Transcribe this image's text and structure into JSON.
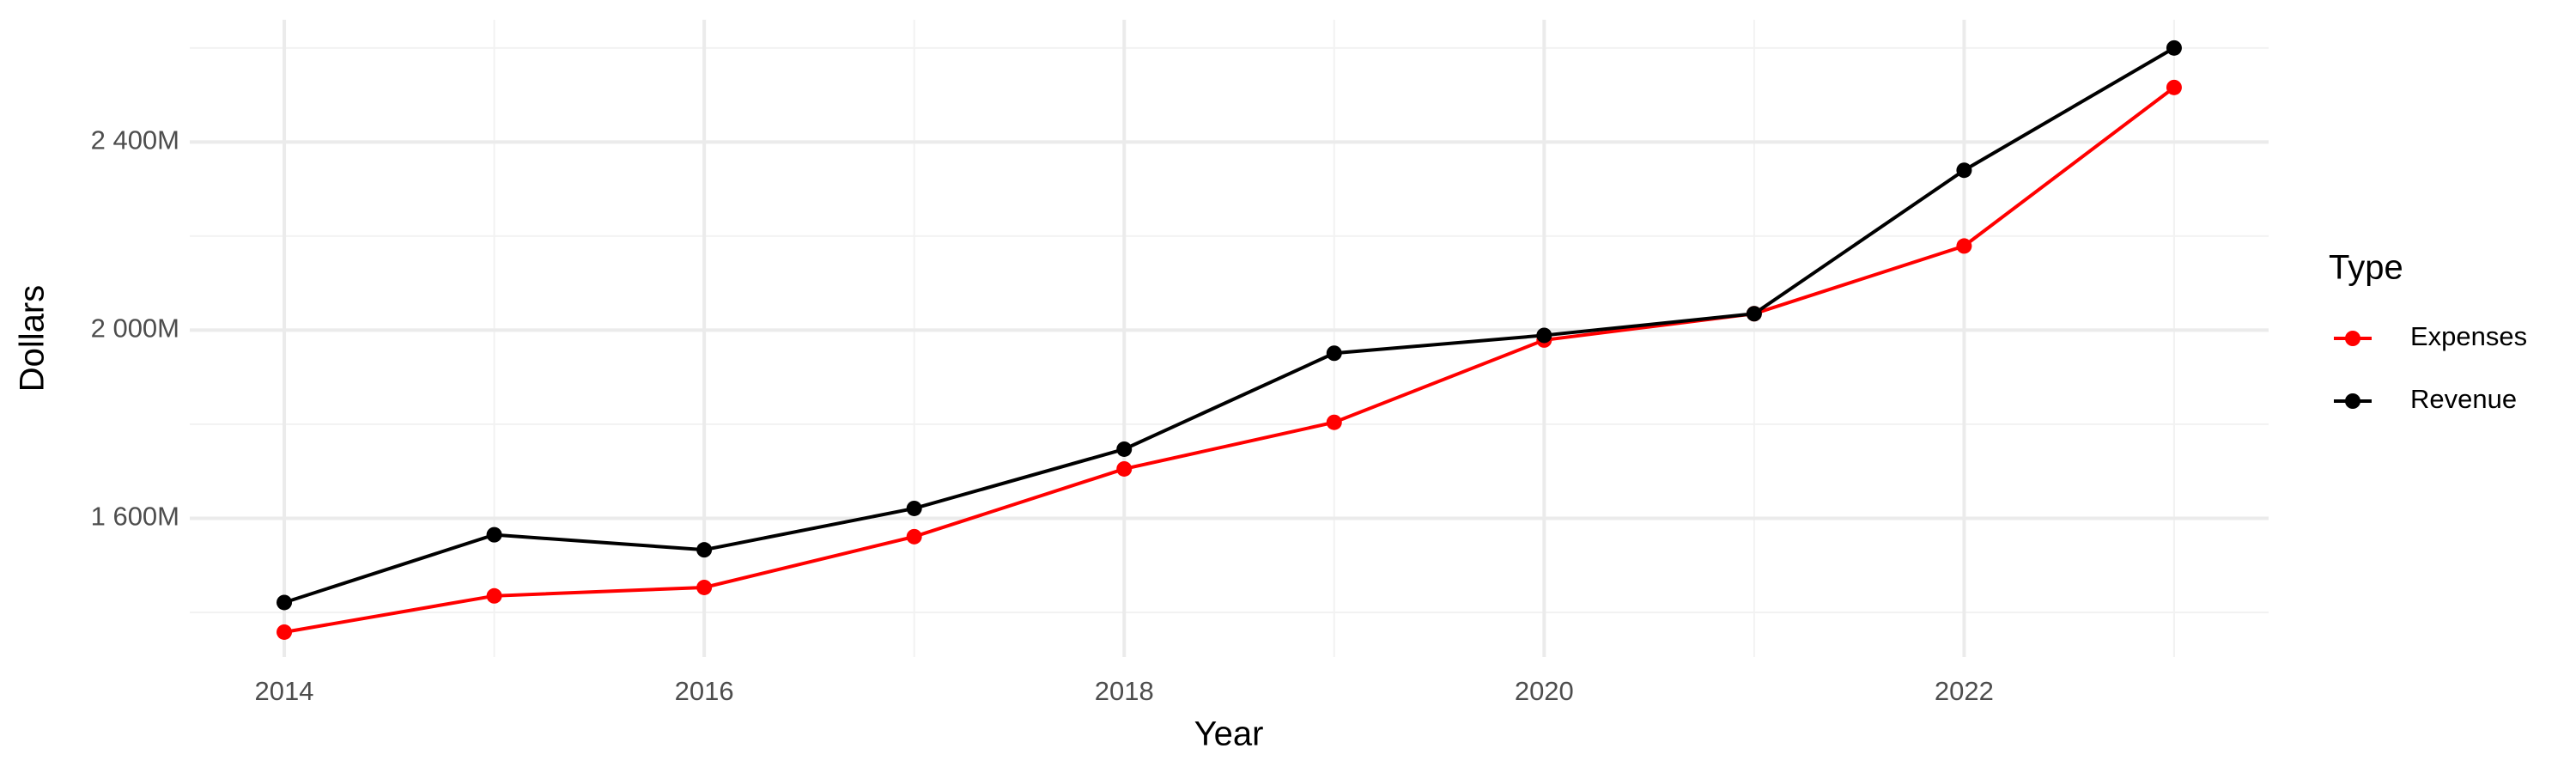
{
  "chart_data": {
    "type": "line",
    "x_label": "Year",
    "y_label": "Dollars",
    "legend_title": "Type",
    "x": [
      2014,
      2015,
      2016,
      2017,
      2018,
      2019,
      2020,
      2021,
      2022,
      2023
    ],
    "series": [
      {
        "name": "Expenses",
        "color": "#ff0000",
        "values": [
          1358000000,
          1435000000,
          1453000000,
          1561000000,
          1705000000,
          1804000000,
          1979000000,
          2035000000,
          2179000000,
          2516000000
        ]
      },
      {
        "name": "Revenue",
        "color": "#000000",
        "values": [
          1421000000,
          1565000000,
          1533000000,
          1621000000,
          1747000000,
          1951000000,
          1989000000,
          2035000000,
          2340000000,
          2600000000
        ]
      }
    ],
    "xlim": [
      2013.55,
      2023.45
    ],
    "xticks": [
      2014,
      2016,
      2018,
      2020,
      2022
    ],
    "ylim": [
      1305000000,
      2660000000
    ],
    "yticks": [
      {
        "value": 1600000000,
        "label": "1 600M"
      },
      {
        "value": 2000000000,
        "label": "2 000M"
      },
      {
        "value": 2400000000,
        "label": "2 400M"
      }
    ],
    "grid": true,
    "legend_position": "right"
  }
}
